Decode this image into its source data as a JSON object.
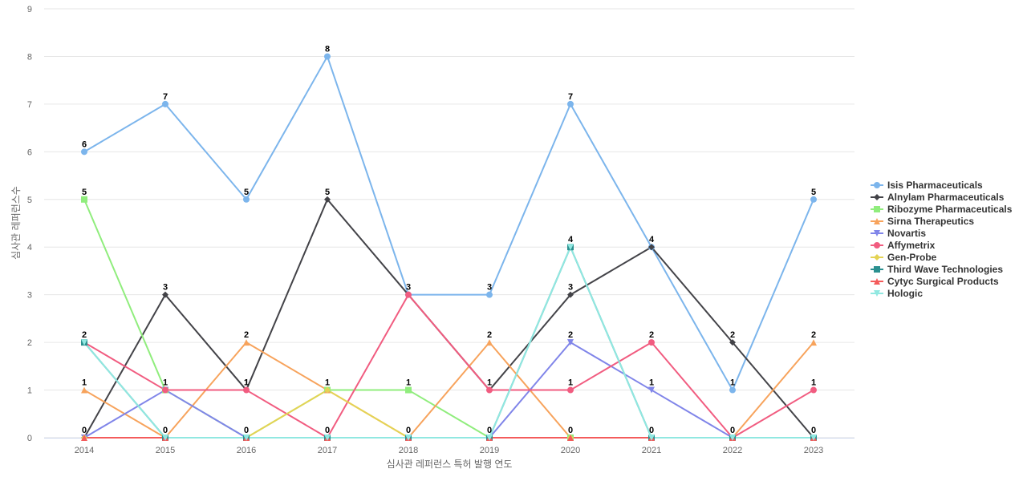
{
  "chart_data": {
    "type": "line",
    "title": "",
    "xlabel": "심사관 레퍼런스 특허 발행 연도",
    "ylabel": "심사관 레퍼런스수",
    "x": [
      "2014",
      "2015",
      "2016",
      "2017",
      "2018",
      "2019",
      "2020",
      "2021",
      "2022",
      "2023"
    ],
    "ylim": [
      0,
      9
    ],
    "yticks": [
      0,
      1,
      2,
      3,
      4,
      5,
      6,
      7,
      8,
      9
    ],
    "grid": true,
    "legend_position": "right",
    "series": [
      {
        "name": "Isis Pharmaceuticals",
        "color": "#7cb5ec",
        "marker": "circle",
        "values": [
          6,
          7,
          5,
          8,
          3,
          3,
          7,
          4,
          1,
          5
        ],
        "labels": [
          6,
          7,
          5,
          8,
          3,
          3,
          7,
          4,
          1,
          5
        ]
      },
      {
        "name": "Alnylam Pharmaceuticals",
        "color": "#434348",
        "marker": "diamond",
        "values": [
          0,
          3,
          1,
          5,
          3,
          1,
          3,
          4,
          2,
          0
        ],
        "labels": [
          0,
          3,
          1,
          5,
          null,
          1,
          3,
          null,
          2,
          0
        ]
      },
      {
        "name": "Ribozyme Pharmaceuticals",
        "color": "#90ed7d",
        "marker": "square",
        "values": [
          5,
          1,
          0,
          1,
          1,
          0,
          0,
          0,
          0,
          0
        ],
        "labels": [
          5,
          null,
          null,
          1,
          1,
          null,
          null,
          null,
          null,
          null
        ]
      },
      {
        "name": "Sirna Therapeutics",
        "color": "#f7a35c",
        "marker": "triangle",
        "values": [
          1,
          0,
          2,
          1,
          0,
          2,
          0,
          0,
          0,
          2
        ],
        "labels": [
          1,
          null,
          2,
          null,
          null,
          2,
          0,
          null,
          null,
          2
        ]
      },
      {
        "name": "Novartis",
        "color": "#8085e9",
        "marker": "triangle-down",
        "values": [
          0,
          1,
          0,
          0,
          0,
          0,
          2,
          1,
          0,
          0
        ],
        "labels": [
          null,
          null,
          null,
          null,
          null,
          0,
          2,
          1,
          null,
          null
        ]
      },
      {
        "name": "Affymetrix",
        "color": "#f15c80",
        "marker": "circle",
        "values": [
          2,
          1,
          1,
          0,
          3,
          1,
          1,
          2,
          0,
          1
        ],
        "labels": [
          2,
          1,
          1,
          0,
          null,
          null,
          1,
          2,
          0,
          1
        ]
      },
      {
        "name": "Gen-Probe",
        "color": "#e4d354",
        "marker": "diamond",
        "values": [
          0,
          0,
          0,
          1,
          0,
          0,
          0,
          0,
          0,
          0
        ],
        "labels": [
          null,
          null,
          null,
          null,
          null,
          null,
          null,
          null,
          null,
          null
        ]
      },
      {
        "name": "Third Wave Technologies",
        "color": "#2b908f",
        "marker": "square",
        "values": [
          2,
          0,
          0,
          0,
          0,
          0,
          4,
          0,
          0,
          0
        ],
        "labels": [
          null,
          0,
          null,
          null,
          0,
          null,
          null,
          0,
          null,
          null
        ]
      },
      {
        "name": "Cytyc Surgical Products",
        "color": "#f45b5b",
        "marker": "triangle",
        "values": [
          0,
          0,
          0,
          0,
          0,
          0,
          0,
          0,
          0,
          0
        ],
        "labels": [
          null,
          null,
          null,
          null,
          null,
          null,
          null,
          null,
          null,
          null
        ]
      },
      {
        "name": "Hologic",
        "color": "#91e8e1",
        "marker": "triangle-down",
        "values": [
          2,
          0,
          0,
          0,
          0,
          0,
          4,
          0,
          0,
          0
        ],
        "labels": [
          null,
          null,
          0,
          null,
          null,
          null,
          4,
          null,
          null,
          null
        ]
      }
    ]
  }
}
